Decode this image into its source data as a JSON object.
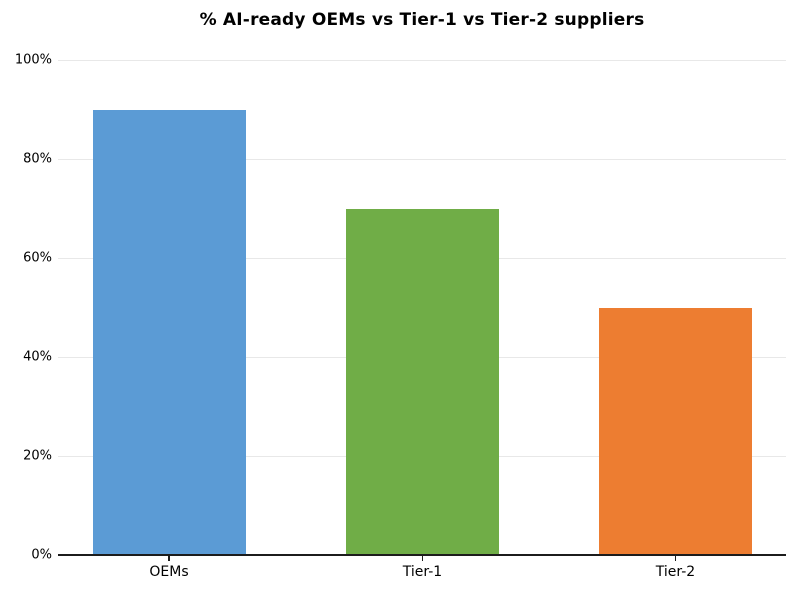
{
  "chart_data": {
    "type": "bar",
    "title": "% AI-ready OEMs vs Tier-1 vs Tier-2 suppliers",
    "categories": [
      "OEMs",
      "Tier-1",
      "Tier-2"
    ],
    "values": [
      90,
      70,
      50
    ],
    "value_unit": "%",
    "bar_colors": [
      "#5b9bd5",
      "#70ad47",
      "#ed7d31"
    ],
    "xlabel": "",
    "ylabel": "",
    "ylim": [
      0,
      100
    ],
    "yticks": [
      "0%",
      "20%",
      "40%",
      "60%",
      "80%",
      "100%"
    ],
    "grid": "horizontal",
    "gridline_color": "#e8e8e8",
    "axis_color": "#1c1c1c",
    "background_color": "#ffffff",
    "legend": "none"
  }
}
